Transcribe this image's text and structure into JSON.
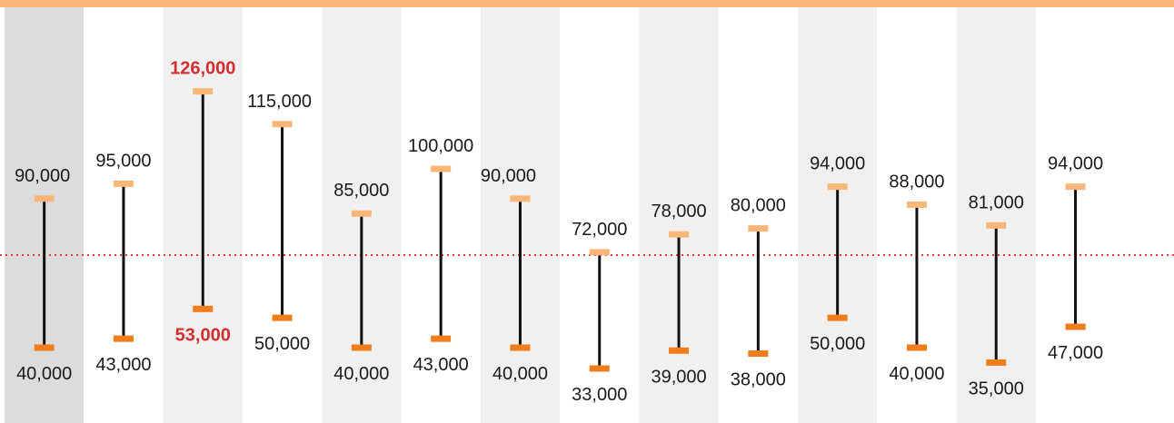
{
  "colors": {
    "top_bar": "#f9b676",
    "band_shade": "#f0f0f0",
    "band_first": "#dcdcdc",
    "band_plain": "#ffffff",
    "high_tick": "#f9b676",
    "low_tick": "#ef7d1b",
    "range_line": "#111111",
    "reference_line": "#e53935",
    "label_text": "#1a1a1a",
    "highlight_text": "#d32f2f"
  },
  "chart_data": {
    "type": "range-bar",
    "title": "",
    "xlabel": "",
    "ylabel": "",
    "ylim": [
      0,
      150000
    ],
    "grid": false,
    "reference_line": {
      "style": "dotted"
    },
    "series": [
      {
        "values_high": [
          90000,
          95000,
          126000,
          115000,
          85000,
          100000,
          90000,
          72000,
          78000,
          80000,
          94000,
          88000,
          81000,
          94000
        ],
        "values_low": [
          40000,
          43000,
          53000,
          50000,
          40000,
          43000,
          40000,
          33000,
          39000,
          38000,
          50000,
          40000,
          35000,
          47000
        ]
      }
    ],
    "high_labels": [
      "90,000",
      "95,000",
      "126,000",
      "115,000",
      "85,000",
      "100,000",
      "90,000",
      "72,000",
      "78,000",
      "80,000",
      "94,000",
      "88,000",
      "81,000",
      "94,000"
    ],
    "low_labels": [
      "40,000",
      "43,000",
      "53,000",
      "50,000",
      "40,000",
      "43,000",
      "40,000",
      "33,000",
      "39,000",
      "38,000",
      "50,000",
      "40,000",
      "35,000",
      "47,000"
    ],
    "highlighted_index": 2,
    "shaded_bands": [
      0,
      2,
      4,
      6,
      8,
      10,
      12
    ]
  }
}
